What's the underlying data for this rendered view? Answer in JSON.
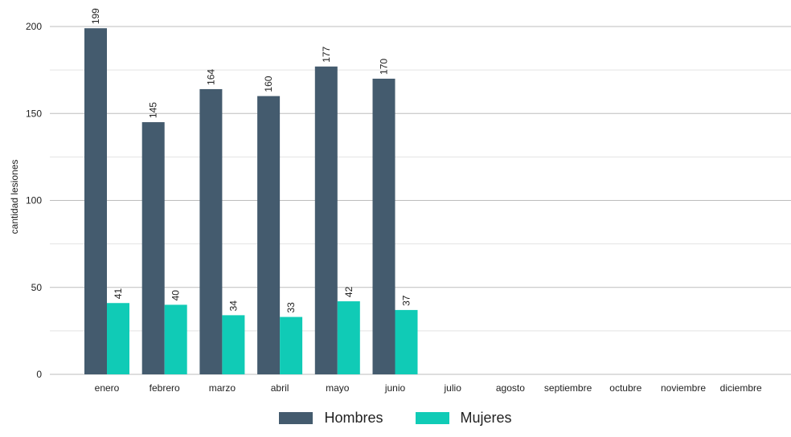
{
  "chart_data": {
    "type": "bar",
    "categories": [
      "enero",
      "febrero",
      "marzo",
      "abril",
      "mayo",
      "junio",
      "julio",
      "agosto",
      "septiembre",
      "octubre",
      "noviembre",
      "diciembre"
    ],
    "series": [
      {
        "name": "Hombres",
        "color": "#445b6e",
        "values": [
          199,
          145,
          164,
          160,
          177,
          170,
          null,
          null,
          null,
          null,
          null,
          null
        ]
      },
      {
        "name": "Mujeres",
        "color": "#10cbb6",
        "values": [
          41,
          40,
          34,
          33,
          42,
          37,
          null,
          null,
          null,
          null,
          null,
          null
        ]
      }
    ],
    "ylabel": "cantidad lesiones",
    "xlabel": "",
    "ylim": [
      0,
      200
    ],
    "yticks": [
      0,
      50,
      100,
      150,
      200
    ],
    "grid": true,
    "legend_position": "bottom"
  }
}
